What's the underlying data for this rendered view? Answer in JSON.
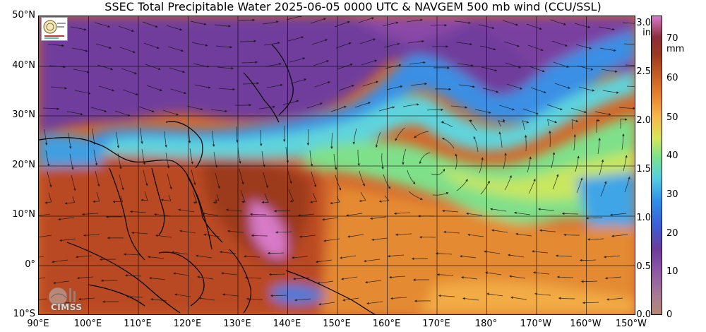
{
  "title": "SSEC Total Precipitable Water  2025-06-05 0000 UTC & NAVGEM 500 mb wind (CCU/SSL)",
  "latitude_labels": [
    "50°N",
    "40°N",
    "30°N",
    "20°N",
    "10°N",
    "0°",
    "10°S"
  ],
  "longitude_labels": [
    "90°E",
    "100°E",
    "110°E",
    "120°E",
    "130°E",
    "140°E",
    "150°E",
    "160°E",
    "170°E",
    "180°",
    "170°W",
    "160°W",
    "150°W"
  ],
  "colorbar": {
    "inch_unit": "in",
    "mm_unit": "mm",
    "inch_ticks": [
      "3.0",
      "2.5",
      "2.0",
      "1.5",
      "1.0",
      "0.5",
      "0.0"
    ],
    "mm_ticks": [
      "70",
      "60",
      "50",
      "40",
      "30",
      "20",
      "10",
      "0"
    ]
  },
  "watermark": "CIMSS",
  "colors": {
    "dry": "#6c3c9b",
    "moist": "#c95f24",
    "very_moist": "#d77ac8",
    "mid": "#7ee28a",
    "low": "#2f8fe8"
  },
  "icons": [
    "university-seal-icon",
    "cimss-logo-icon"
  ]
}
